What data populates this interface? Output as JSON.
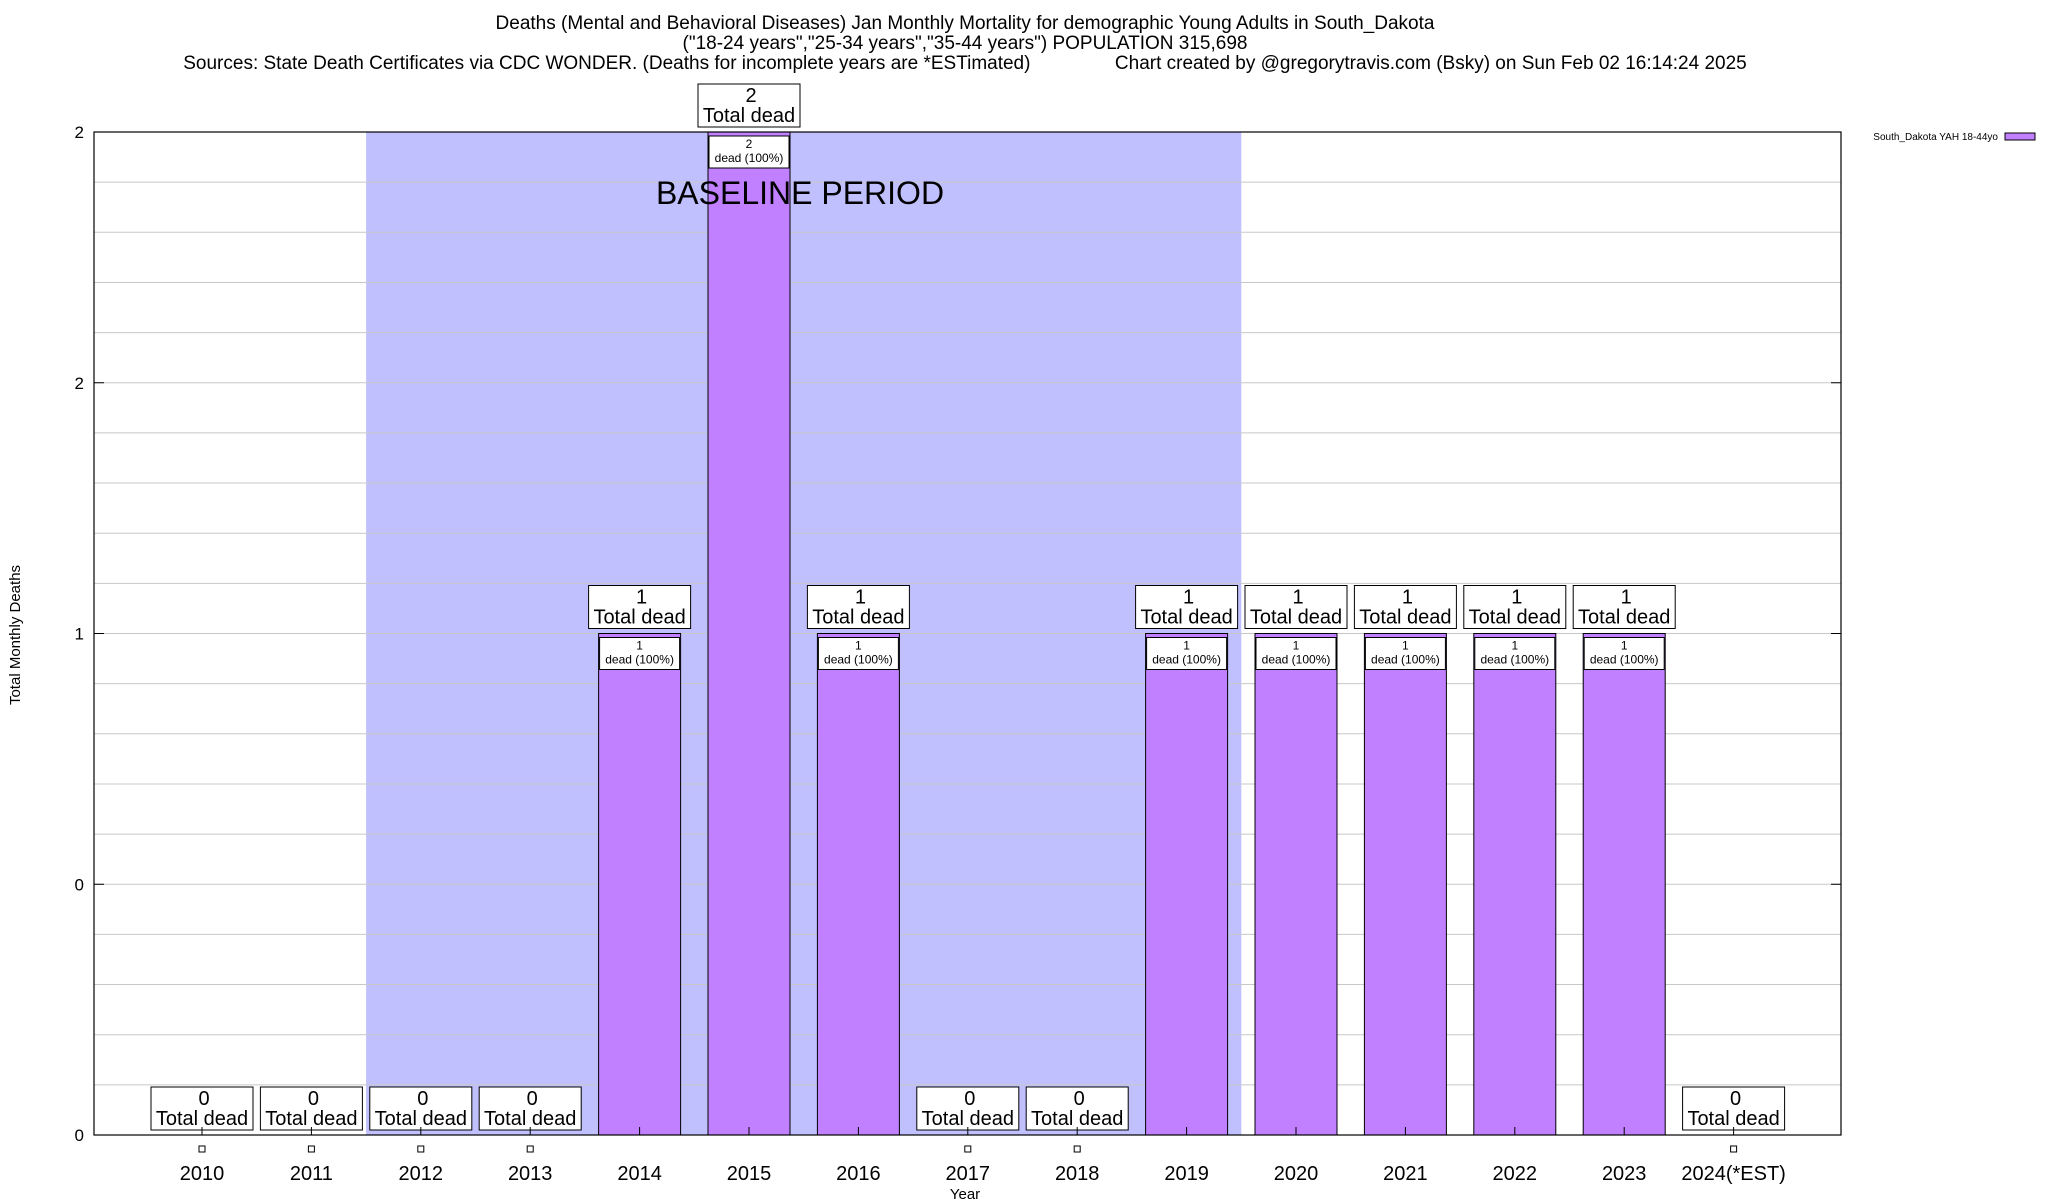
{
  "header": {
    "line1": "Deaths (Mental and Behavioral Diseases) Jan Monthly Mortality for demographic Young Adults in South_Dakota",
    "line2": "(\"18-24 years\",\"25-34 years\",\"35-44 years\") POPULATION 315,698",
    "line3": "Sources: State Death Certificates via CDC WONDER. (Deaths for incomplete years are *ESTimated)                Chart created by @gregorytravis.com (Bsky) on Sun Feb 02 16:14:24 2025"
  },
  "colors": {
    "bar": "#c080ff",
    "baseline": "#c0c0ff",
    "grid": "#c8c8c8"
  },
  "chart_data": {
    "type": "bar",
    "xlabel": "Year",
    "ylabel": "Total Monthly Deaths",
    "categories": [
      "2010",
      "2011",
      "2012",
      "2013",
      "2014",
      "2015",
      "2016",
      "2017",
      "2018",
      "2019",
      "2020",
      "2021",
      "2022",
      "2023",
      "2024(*EST)"
    ],
    "series": [
      {
        "name": "South_Dakota YAH 18-44yo",
        "values": [
          0,
          0,
          0,
          0,
          1,
          2,
          1,
          0,
          0,
          1,
          1,
          1,
          1,
          1,
          0
        ]
      }
    ],
    "ylim": [
      0,
      2
    ],
    "ytick_values": [
      0,
      0.5,
      1,
      1.5,
      2
    ],
    "ytick_labels": [
      "0",
      "0",
      "1",
      "2",
      "2"
    ],
    "total_label": "Total dead",
    "inner_label": "dead (100%)",
    "baseline_period": {
      "label": "BASELINE PERIOD",
      "from": "2012",
      "to": "2019"
    },
    "legend_position": "top-right",
    "grid": true
  }
}
